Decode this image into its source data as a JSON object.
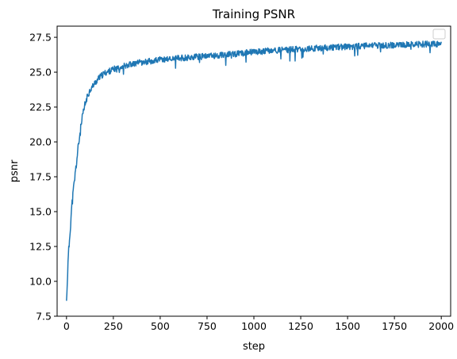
{
  "chart_data": {
    "type": "line",
    "title": "Training PSNR",
    "xlabel": "step",
    "ylabel": "psnr",
    "xlim": [
      -50,
      2050
    ],
    "ylim": [
      7.5,
      28.3
    ],
    "xticks": [
      0,
      250,
      500,
      750,
      1000,
      1250,
      1500,
      1750,
      2000
    ],
    "yticks": [
      7.5,
      10.0,
      12.5,
      15.0,
      17.5,
      20.0,
      22.5,
      25.0,
      27.5
    ],
    "grid": false,
    "legend": "top-right (empty)",
    "series": [
      {
        "color": "#1f77b4",
        "x": [
          0,
          5,
          10,
          15,
          20,
          25,
          30,
          40,
          50,
          60,
          70,
          80,
          90,
          100,
          110,
          125,
          150,
          175,
          200,
          250,
          300,
          350,
          400,
          450,
          500,
          550,
          600,
          650,
          700,
          750,
          800,
          850,
          900,
          950,
          1000,
          1100,
          1200,
          1300,
          1400,
          1500,
          1600,
          1700,
          1800,
          1900,
          2000
        ],
        "y": [
          8.5,
          10.3,
          11.8,
          12.8,
          13.8,
          14.8,
          15.6,
          16.9,
          18.1,
          19.3,
          20.4,
          21.3,
          22.1,
          22.7,
          23.2,
          23.7,
          24.2,
          24.6,
          24.9,
          25.2,
          25.45,
          25.6,
          25.7,
          25.8,
          25.9,
          25.95,
          26.0,
          26.05,
          26.1,
          26.15,
          26.2,
          26.25,
          26.3,
          26.38,
          26.45,
          26.55,
          26.62,
          26.7,
          26.77,
          26.83,
          26.88,
          26.92,
          26.96,
          27.0,
          27.02
        ]
      }
    ]
  }
}
